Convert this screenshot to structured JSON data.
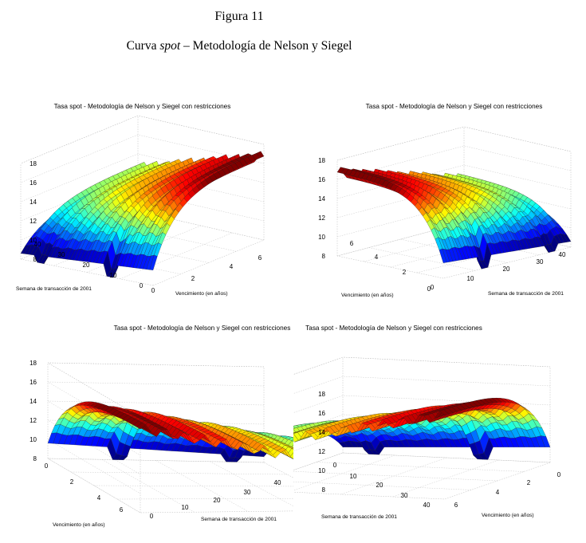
{
  "figure": {
    "number": "Figura 11",
    "caption_prefix": "Curva ",
    "caption_italic": "spot",
    "caption_suffix": " – Metodología de Nelson y Siegel"
  },
  "chart_data": [
    {
      "type": "surface",
      "title": "Tasa spot - Metodología de Nelson y Siegel con restricciones",
      "xlabel": "Vencimiento (en años)",
      "ylabel": "Semana de transacción de 2001",
      "zlabel": "",
      "x_range": [
        0,
        7
      ],
      "y_range": [
        0,
        40
      ],
      "zlim": [
        8,
        18
      ],
      "x_ticks": [
        "0",
        "2",
        "4",
        "6"
      ],
      "y_ticks": [
        "0",
        "10",
        "20",
        "30",
        "40"
      ],
      "z_ticks": [
        "8",
        "10",
        "12",
        "14",
        "16",
        "18"
      ],
      "grid": true,
      "colormap": "jet",
      "view": "azimuth -37.5°, elevation 30°"
    },
    {
      "type": "surface",
      "title": "Tasa spot - Metodología de Nelson y Siegel con restricciones",
      "xlabel": "Vencimiento (en años)",
      "ylabel": "Semana de transacción de 2001",
      "zlabel": "",
      "x_range": [
        0,
        7
      ],
      "y_range": [
        0,
        40
      ],
      "zlim": [
        8,
        18
      ],
      "x_ticks": [
        "0",
        "2",
        "4",
        "6"
      ],
      "y_ticks": [
        "0",
        "10",
        "20",
        "30",
        "40"
      ],
      "z_ticks": [
        "8",
        "10",
        "12",
        "14",
        "16",
        "18"
      ],
      "grid": true,
      "colormap": "jet",
      "view": "azimuth 52.5°, elevation 30°"
    },
    {
      "type": "surface",
      "title": "Tasa spot - Metodología de Nelson y Siegel con restricciones",
      "xlabel": "Vencimiento (en años)",
      "ylabel": "Semana de transacción de 2001",
      "zlabel": "",
      "x_range": [
        0,
        7
      ],
      "y_range": [
        0,
        40
      ],
      "zlim": [
        8,
        18
      ],
      "x_ticks": [
        "0",
        "2",
        "4",
        "6"
      ],
      "y_ticks": [
        "0",
        "10",
        "20",
        "30",
        "40"
      ],
      "z_ticks": [
        "8",
        "10",
        "12",
        "14",
        "16",
        "18"
      ],
      "grid": true,
      "colormap": "jet",
      "view": "azimuth -127.5°, elevation 30°"
    },
    {
      "type": "surface",
      "title": "Tasa spot - Metodología de Nelson y Siegel con restricciones",
      "xlabel": "Vencimiento (en años)",
      "ylabel": "Semana de transacción de 2001",
      "zlabel": "",
      "x_range": [
        0,
        7
      ],
      "y_range": [
        0,
        40
      ],
      "zlim": [
        8,
        18
      ],
      "x_ticks": [
        "0",
        "2",
        "4",
        "6"
      ],
      "y_ticks": [
        "0",
        "10",
        "20",
        "30",
        "40"
      ],
      "z_ticks": [
        "8",
        "10",
        "12",
        "14",
        "16",
        "18"
      ],
      "grid": true,
      "colormap": "jet",
      "view": "azimuth 142.5°, elevation 30°"
    }
  ]
}
